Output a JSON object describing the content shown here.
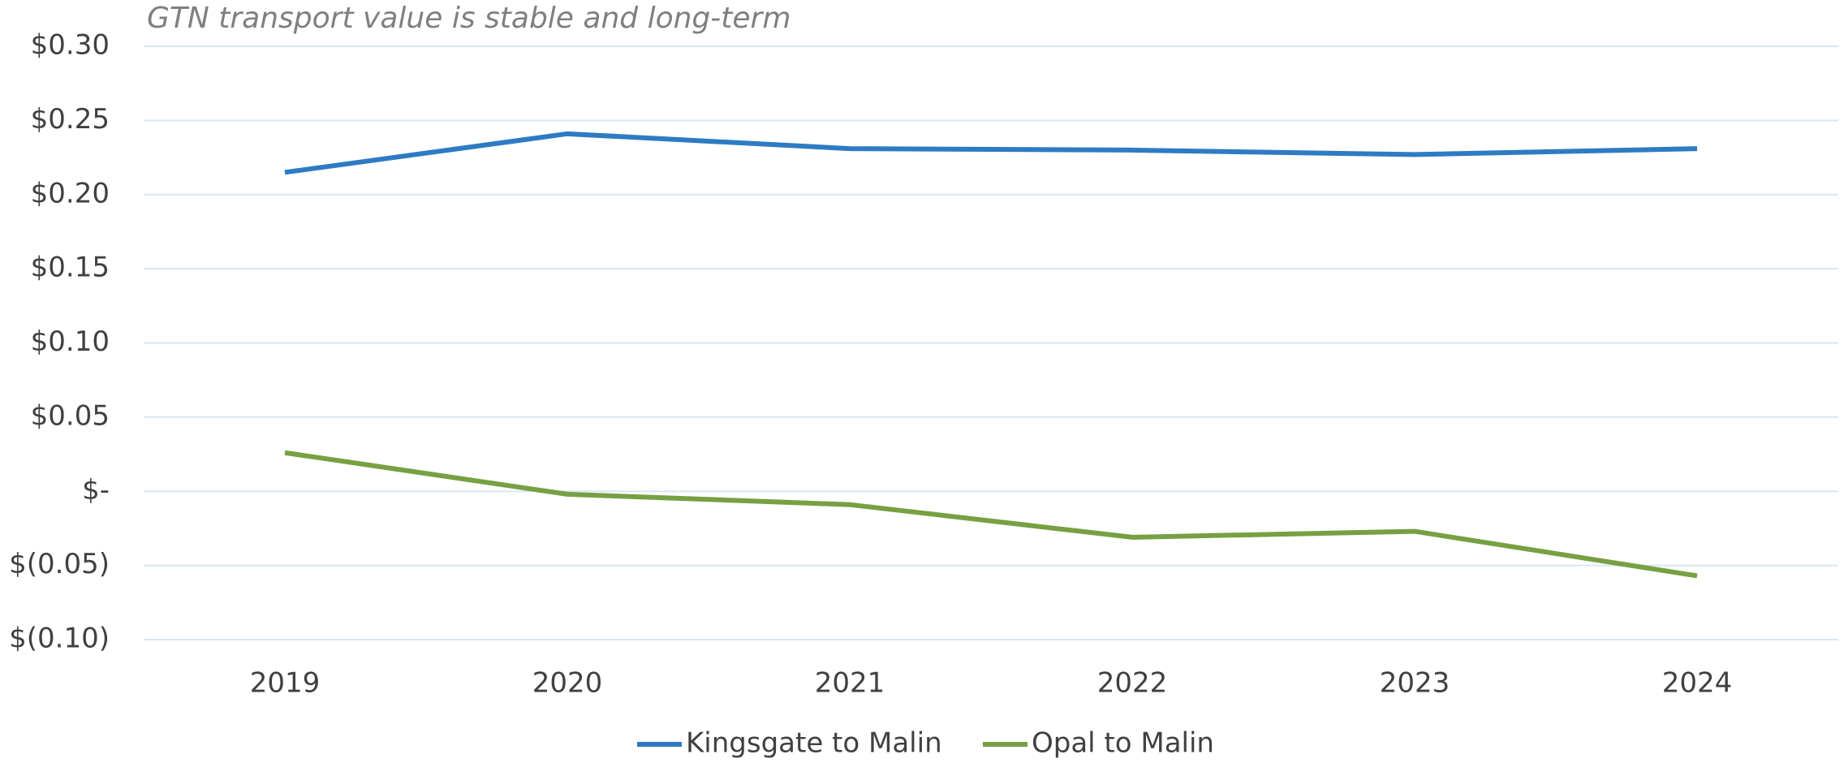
{
  "chart_data": {
    "type": "line",
    "title": "GTN transport value is stable and long-term",
    "categories": [
      "2019",
      "2020",
      "2021",
      "2022",
      "2023",
      "2024"
    ],
    "series": [
      {
        "name": "Kingsgate to Malin",
        "color": "#2e7bc4",
        "values": [
          0.215,
          0.241,
          0.231,
          0.23,
          0.227,
          0.231
        ]
      },
      {
        "name": "Opal to Malin",
        "color": "#77a043",
        "values": [
          0.026,
          -0.002,
          -0.009,
          -0.031,
          -0.027,
          -0.057
        ]
      }
    ],
    "ylim": [
      -0.1,
      0.3
    ],
    "yticks": [
      {
        "value": -0.1,
        "label": "$(0.10)"
      },
      {
        "value": -0.05,
        "label": "$(0.05)"
      },
      {
        "value": 0,
        "label": "$-"
      },
      {
        "value": 0.05,
        "label": "$0.05"
      },
      {
        "value": 0.1,
        "label": "$0.10"
      },
      {
        "value": 0.15,
        "label": "$0.15"
      },
      {
        "value": 0.2,
        "label": "$0.20"
      },
      {
        "value": 0.25,
        "label": "$0.25"
      },
      {
        "value": 0.3,
        "label": "$0.30"
      }
    ],
    "grid": true,
    "legend": "bottom"
  }
}
